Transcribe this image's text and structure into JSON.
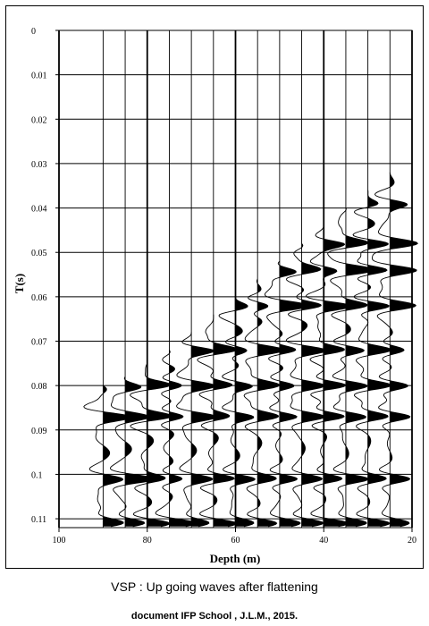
{
  "caption": "VSP : Up going waves after flattening",
  "credit": "document IFP School , J.L.M., 2015.",
  "chart_data": {
    "type": "seismic-wiggle",
    "xlabel": "Depth (m)",
    "ylabel": "T(s)",
    "xlim": [
      100,
      20
    ],
    "ylim": [
      0,
      0.112
    ],
    "x_ticks": [
      100,
      80,
      60,
      40,
      20
    ],
    "y_ticks": [
      0,
      0.01,
      0.02,
      0.03,
      0.04,
      0.05,
      0.06,
      0.07,
      0.08,
      0.09,
      0.1,
      0.11
    ],
    "grid": true,
    "fill_color": "#000000",
    "traces": [
      {
        "depth": 25,
        "onset": 0.032
      },
      {
        "depth": 30,
        "onset": 0.036
      },
      {
        "depth": 35,
        "onset": 0.04
      },
      {
        "depth": 40,
        "onset": 0.044
      },
      {
        "depth": 45,
        "onset": 0.048
      },
      {
        "depth": 50,
        "onset": 0.052
      },
      {
        "depth": 55,
        "onset": 0.056
      },
      {
        "depth": 60,
        "onset": 0.06
      },
      {
        "depth": 65,
        "onset": 0.064
      },
      {
        "depth": 70,
        "onset": 0.068
      },
      {
        "depth": 75,
        "onset": 0.072
      },
      {
        "depth": 80,
        "onset": 0.075
      },
      {
        "depth": 85,
        "onset": 0.078
      },
      {
        "depth": 90,
        "onset": 0.08
      }
    ],
    "horizontal_events": [
      {
        "time": 0.039,
        "polarity": 1
      },
      {
        "time": 0.048,
        "polarity": 1
      },
      {
        "time": 0.054,
        "polarity": 1
      },
      {
        "time": 0.062,
        "polarity": 1
      },
      {
        "time": 0.072,
        "polarity": 1
      },
      {
        "time": 0.08,
        "polarity": 1
      },
      {
        "time": 0.087,
        "polarity": 1
      },
      {
        "time": 0.101,
        "polarity": 1
      },
      {
        "time": 0.111,
        "polarity": 1
      }
    ]
  }
}
